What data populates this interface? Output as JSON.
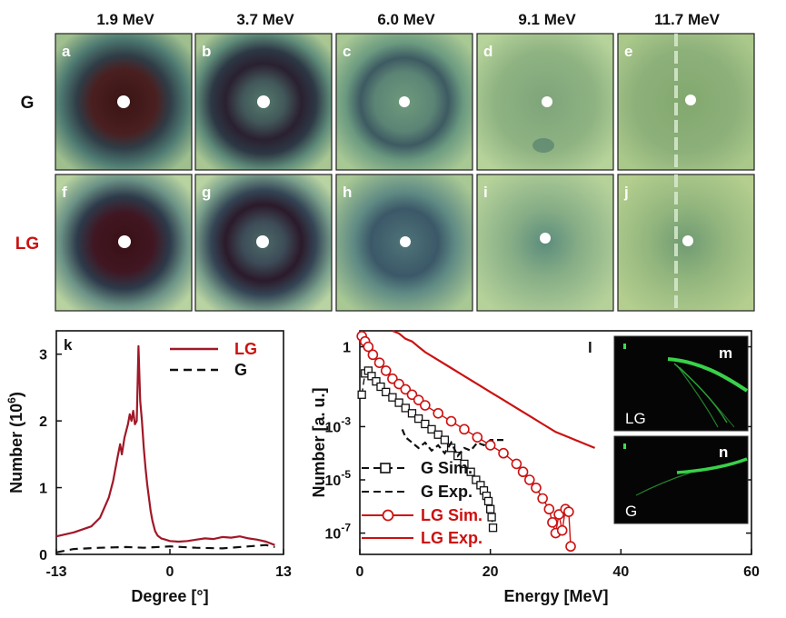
{
  "top_figure": {
    "energies": [
      "1.9 MeV",
      "3.7 MeV",
      "6.0 MeV",
      "9.1 MeV",
      "11.7 MeV"
    ],
    "rows": [
      {
        "label": "G",
        "color": "#111111",
        "panels": [
          "a",
          "b",
          "c",
          "d",
          "e"
        ],
        "ring_strength": [
          1.0,
          0.85,
          0.5,
          0.15,
          0.05
        ]
      },
      {
        "label": "LG",
        "color": "#cc1111",
        "panels": [
          "f",
          "g",
          "h",
          "i",
          "j"
        ],
        "ring_strength": [
          1.0,
          0.9,
          0.6,
          0.25,
          0.15
        ]
      }
    ]
  },
  "chart_data": [
    {
      "panel": "k",
      "type": "line",
      "xlabel": "Degree [°]",
      "ylabel": "Number  (10",
      "ylabel_sup": "6",
      "ylabel_close": ")",
      "xlim": [
        -13,
        13
      ],
      "ylim": [
        0,
        3.35
      ],
      "xticks": [
        -13,
        0,
        13
      ],
      "xtick_labels": [
        "-13",
        "0",
        "13"
      ],
      "yticks": [
        0,
        1,
        2,
        3
      ],
      "ytick_labels": [
        "0",
        "1",
        "2",
        "3"
      ],
      "series": [
        {
          "name": "LG",
          "color": "#a01828",
          "style": "solid",
          "x": [
            -13,
            -11,
            -9,
            -8,
            -7,
            -6.5,
            -6,
            -5.7,
            -5.5,
            -5.2,
            -5.0,
            -4.8,
            -4.6,
            -4.4,
            -4.2,
            -4.0,
            -3.8,
            -3.6,
            -3.4,
            -3.2,
            -3.0,
            -2.8,
            -2.6,
            -2.4,
            -2.2,
            -2.0,
            -1.7,
            -1.4,
            -1.0,
            -0.5,
            0,
            1,
            2,
            3,
            4,
            5,
            6,
            7,
            8,
            9,
            10,
            11,
            12
          ],
          "values": [
            0.27,
            0.33,
            0.42,
            0.55,
            0.85,
            1.1,
            1.45,
            1.65,
            1.5,
            1.75,
            1.85,
            1.95,
            2.1,
            2.0,
            2.15,
            1.95,
            2.0,
            3.12,
            2.3,
            2.0,
            1.6,
            1.3,
            1.05,
            0.85,
            0.65,
            0.5,
            0.35,
            0.28,
            0.24,
            0.22,
            0.2,
            0.19,
            0.2,
            0.22,
            0.24,
            0.23,
            0.26,
            0.25,
            0.27,
            0.24,
            0.22,
            0.19,
            0.14
          ]
        },
        {
          "name": "G",
          "color": "#111111",
          "style": "dashed",
          "x": [
            -13,
            -11,
            -8,
            -5,
            -3,
            0,
            3,
            6,
            9,
            11,
            12
          ],
          "values": [
            0.03,
            0.08,
            0.1,
            0.11,
            0.1,
            0.12,
            0.1,
            0.09,
            0.12,
            0.14,
            0.11
          ]
        }
      ]
    },
    {
      "panel": "l",
      "type": "scatter",
      "xlabel": "Energy [MeV]",
      "ylabel": "Number [a. u.]",
      "xlim": [
        0,
        60
      ],
      "ylim_log10": [
        -7.8,
        0.6
      ],
      "xticks": [
        0,
        20,
        40,
        60
      ],
      "xtick_labels": [
        "0",
        "20",
        "40",
        "60"
      ],
      "yticks_log10": [
        0,
        -3,
        -5,
        -7
      ],
      "ytick_labels": [
        {
          "base": "1",
          "exp": ""
        },
        {
          "base": "10",
          "exp": "-3"
        },
        {
          "base": "10",
          "exp": "-5"
        },
        {
          "base": "10",
          "exp": "-7"
        }
      ],
      "series": [
        {
          "name": "G Sim.",
          "color": "#111111",
          "marker": "square",
          "line": "dashed",
          "x": [
            0.3,
            0.8,
            1.3,
            1.8,
            2.5,
            3.2,
            4,
            5,
            6,
            7,
            8,
            9,
            10,
            11,
            12,
            13,
            14,
            15,
            16,
            17,
            17.8,
            18.5,
            19.0,
            19.4,
            19.7,
            20.0,
            20.2,
            20.4
          ],
          "log10": [
            -1.8,
            -1.0,
            -0.9,
            -1.1,
            -1.3,
            -1.5,
            -1.7,
            -1.9,
            -2.1,
            -2.3,
            -2.5,
            -2.7,
            -2.9,
            -3.1,
            -3.3,
            -3.5,
            -3.8,
            -4.1,
            -4.4,
            -4.7,
            -5.0,
            -5.2,
            -5.4,
            -5.6,
            -5.8,
            -6.1,
            -6.4,
            -6.8
          ]
        },
        {
          "name": "G Exp.",
          "color": "#111111",
          "marker": "none",
          "line": "dashed",
          "x": [
            6.5,
            7,
            8,
            9,
            10,
            11,
            12,
            13,
            14,
            15,
            16,
            17,
            18,
            19,
            20,
            21,
            22.5
          ],
          "log10": [
            -3.1,
            -3.4,
            -3.6,
            -3.8,
            -3.6,
            -3.9,
            -3.7,
            -4.0,
            -3.6,
            -4.1,
            -3.8,
            -3.9,
            -3.6,
            -3.7,
            -3.5,
            -3.5,
            -3.5
          ]
        },
        {
          "name": "LG Sim.",
          "color": "#cc1111",
          "marker": "circle",
          "line": "solid",
          "x": [
            0.3,
            0.8,
            1.3,
            2,
            3,
            4,
            5,
            6,
            7,
            8,
            9,
            10,
            12,
            14,
            16,
            18,
            20,
            22,
            24,
            25,
            26,
            27,
            28,
            29,
            29.5,
            30,
            30.5,
            31,
            31.5,
            32,
            32.3
          ],
          "log10": [
            0.4,
            0.2,
            0.0,
            -0.3,
            -0.6,
            -0.9,
            -1.2,
            -1.4,
            -1.6,
            -1.8,
            -2.0,
            -2.2,
            -2.5,
            -2.8,
            -3.1,
            -3.4,
            -3.7,
            -4.0,
            -4.4,
            -4.7,
            -5.0,
            -5.3,
            -5.7,
            -6.1,
            -6.6,
            -7.0,
            -6.3,
            -6.9,
            -6.1,
            -6.2,
            -7.5
          ]
        },
        {
          "name": "LG Exp.",
          "color": "#cc1111",
          "marker": "none",
          "line": "solid",
          "x": [
            5,
            6,
            7,
            8,
            9,
            10,
            12,
            14,
            16,
            18,
            20,
            22,
            24,
            26,
            28,
            30,
            32,
            34,
            36
          ],
          "log10": [
            0.6,
            0.5,
            0.3,
            0.2,
            0.0,
            -0.2,
            -0.5,
            -0.8,
            -1.1,
            -1.4,
            -1.7,
            -2.0,
            -2.3,
            -2.6,
            -2.9,
            -3.2,
            -3.4,
            -3.6,
            -3.8
          ]
        }
      ]
    }
  ],
  "panel_letters": {
    "k": "k",
    "l": "l",
    "m": "m",
    "n": "n"
  },
  "inset_labels": {
    "m_row": "LG",
    "n_row": "G"
  }
}
